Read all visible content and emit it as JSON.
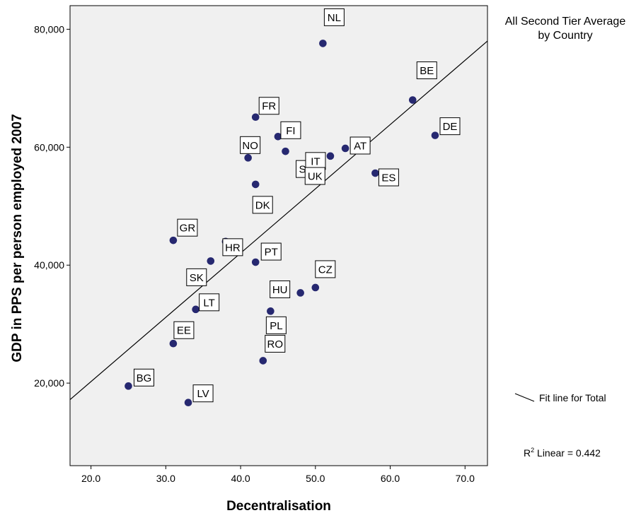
{
  "chart_data": {
    "type": "scatter",
    "title_lines": [
      "All Second Tier Average",
      "by Country"
    ],
    "xlabel": "Decentralisation",
    "ylabel": "GDP in PPS per person employed 2007",
    "xlim": [
      17.2,
      73.0
    ],
    "ylim": [
      6000,
      84000
    ],
    "x_ticks": [
      20,
      30,
      40,
      50,
      60,
      70
    ],
    "x_tick_labels": [
      "20.0",
      "30.0",
      "40.0",
      "50.0",
      "60.0",
      "70.0"
    ],
    "y_ticks": [
      20000,
      40000,
      60000,
      80000
    ],
    "y_tick_labels": [
      "20,000",
      "40,000",
      "60,000",
      "80,000"
    ],
    "point_color": "#262870",
    "background_color": "#f0f0f0",
    "points": [
      {
        "label": "NL",
        "x": 51,
        "y": 77600
      },
      {
        "label": "BE",
        "x": 63,
        "y": 68000
      },
      {
        "label": "DE",
        "x": 66,
        "y": 62000
      },
      {
        "label": "FR",
        "x": 42,
        "y": 65100
      },
      {
        "label": "FI",
        "x": 45,
        "y": 61800
      },
      {
        "label": "NO",
        "x": 41,
        "y": 58200
      },
      {
        "label": "SE",
        "x": 46,
        "y": 59300
      },
      {
        "label": "AT",
        "x": 54,
        "y": 59800
      },
      {
        "label": "IT",
        "x": 52,
        "y": 58500
      },
      {
        "label": "ES",
        "x": 58,
        "y": 55600
      },
      {
        "label": "UK",
        "x": 49,
        "y": 56800
      },
      {
        "label": "DK",
        "x": 42,
        "y": 53700
      },
      {
        "label": "GR",
        "x": 31,
        "y": 44200
      },
      {
        "label": "HR",
        "x": 38,
        "y": 44000
      },
      {
        "label": "PT",
        "x": 42,
        "y": 40500
      },
      {
        "label": "SK",
        "x": 36,
        "y": 40700
      },
      {
        "label": "CZ",
        "x": 50,
        "y": 36200
      },
      {
        "label": "HU",
        "x": 48,
        "y": 35300
      },
      {
        "label": "LT",
        "x": 34,
        "y": 32500
      },
      {
        "label": "PL",
        "x": 44,
        "y": 32200
      },
      {
        "label": "EE",
        "x": 31,
        "y": 26700
      },
      {
        "label": "RO",
        "x": 43,
        "y": 23800
      },
      {
        "label": "BG",
        "x": 25,
        "y": 19500
      },
      {
        "label": "LV",
        "x": 33,
        "y": 16700
      }
    ],
    "fit_line": {
      "x": [
        17.2,
        73.0
      ],
      "y": [
        17200,
        78000
      ]
    },
    "legend_label": "Fit line for Total",
    "r2_prefix": "R",
    "r2_sup": "2",
    "r2_rest": " Linear = 0.442"
  }
}
